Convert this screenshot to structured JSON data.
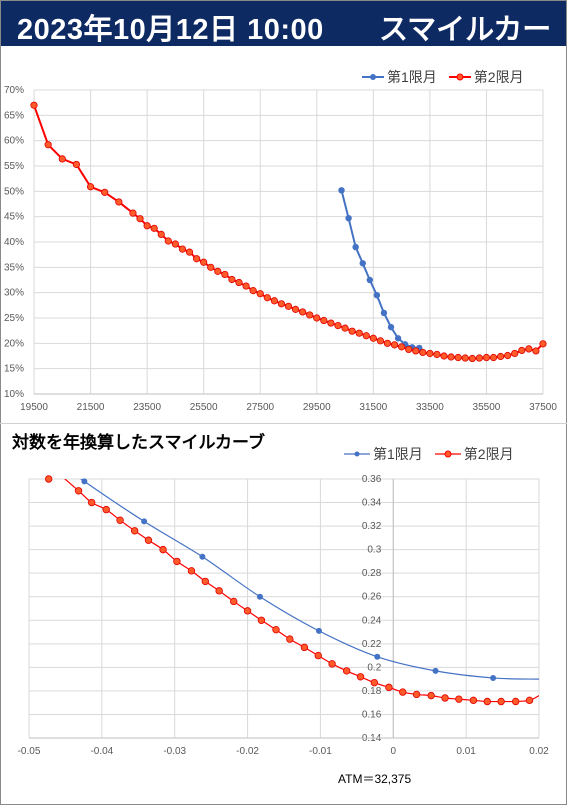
{
  "title": {
    "date": "2023年10月12日 10:00",
    "subtitle": "スマイルカーブ"
  },
  "chart_data": [
    {
      "type": "line",
      "title": "",
      "xlabel": "",
      "ylabel": "",
      "xlim": [
        19500,
        37500
      ],
      "ylim": [
        0.1,
        0.7
      ],
      "xticks": [
        19500,
        21500,
        23500,
        25500,
        27500,
        29500,
        31500,
        33500,
        35500,
        37500
      ],
      "xtick_labels": [
        "19500",
        "21500",
        "23500",
        "25500",
        "27500",
        "29500",
        "31500",
        "33500",
        "35500",
        "37500"
      ],
      "yticks": [
        0.1,
        0.15,
        0.2,
        0.25,
        0.3,
        0.35,
        0.4,
        0.45,
        0.5,
        0.55,
        0.6,
        0.65,
        0.7
      ],
      "ytick_labels": [
        "10%",
        "15%",
        "20%",
        "25%",
        "30%",
        "35%",
        "40%",
        "45%",
        "50%",
        "55%",
        "60%",
        "65%",
        "70%"
      ],
      "grid": true,
      "legend": "top-right",
      "series": [
        {
          "name": "第1限月",
          "color": "#4472c4",
          "x": [
            30375,
            30625,
            30875,
            31125,
            31375,
            31625,
            31875,
            32125,
            32375,
            32625,
            32875,
            33125
          ],
          "y": [
            0.502,
            0.447,
            0.39,
            0.358,
            0.325,
            0.295,
            0.26,
            0.232,
            0.21,
            0.198,
            0.192,
            0.191
          ]
        },
        {
          "name": "第2限月",
          "color": "#ff0000",
          "x": [
            19500,
            20000,
            20500,
            21000,
            21500,
            22000,
            22500,
            23000,
            23250,
            23500,
            23750,
            24000,
            24250,
            24500,
            24750,
            25000,
            25250,
            25500,
            25750,
            26000,
            26250,
            26500,
            26750,
            27000,
            27250,
            27500,
            27750,
            28000,
            28250,
            28500,
            28750,
            29000,
            29250,
            29500,
            29750,
            30000,
            30250,
            30500,
            30750,
            31000,
            31250,
            31500,
            31750,
            32000,
            32250,
            32500,
            32750,
            33000,
            33250,
            33500,
            33750,
            34000,
            34250,
            34500,
            34750,
            35000,
            35250,
            35500,
            35750,
            36000,
            36250,
            36500,
            36750,
            37000,
            37250,
            37500
          ],
          "y": [
            0.67,
            0.592,
            0.564,
            0.553,
            0.509,
            0.498,
            0.479,
            0.457,
            0.446,
            0.432,
            0.427,
            0.415,
            0.402,
            0.396,
            0.386,
            0.38,
            0.367,
            0.36,
            0.35,
            0.342,
            0.336,
            0.326,
            0.32,
            0.313,
            0.304,
            0.298,
            0.29,
            0.284,
            0.278,
            0.273,
            0.267,
            0.262,
            0.256,
            0.25,
            0.245,
            0.24,
            0.235,
            0.23,
            0.224,
            0.22,
            0.215,
            0.21,
            0.205,
            0.2,
            0.197,
            0.193,
            0.188,
            0.185,
            0.182,
            0.18,
            0.178,
            0.175,
            0.173,
            0.172,
            0.171,
            0.17,
            0.171,
            0.172,
            0.172,
            0.174,
            0.176,
            0.18,
            0.186,
            0.189,
            0.185,
            0.199
          ]
        }
      ]
    },
    {
      "type": "line",
      "title": "対数を年換算したスマイルカーブ",
      "xlabel": "",
      "ylabel": "",
      "xlim": [
        -0.05,
        0.02
      ],
      "ylim": [
        0.14,
        0.36
      ],
      "xticks": [
        -0.05,
        -0.04,
        -0.03,
        -0.02,
        -0.01,
        0,
        0.01,
        0.02
      ],
      "xtick_labels": [
        "-0.05",
        "-0.04",
        "-0.03",
        "-0.02",
        "-0.01",
        "0",
        "0.01",
        "0.02"
      ],
      "yticks": [
        0.14,
        0.16,
        0.18,
        0.2,
        0.22,
        0.24,
        0.26,
        0.28,
        0.3,
        0.32,
        0.34,
        0.36
      ],
      "ytick_labels": [
        "0.14",
        "0.16",
        "0.18",
        "0.2",
        "0.22",
        "0.24",
        "0.26",
        "0.28",
        "0.3",
        "0.32",
        "0.34",
        "0.36"
      ],
      "grid": true,
      "legend": "top-right",
      "annotation": "ATM＝32,375",
      "series": [
        {
          "name": "第1限月",
          "color": "#4472c4",
          "x": [
            -0.0424,
            -0.0342,
            -0.0262,
            -0.0183,
            -0.0102,
            -0.0022,
            0.0058,
            0.0137
          ],
          "y": [
            0.358,
            0.324,
            0.294,
            0.26,
            0.231,
            0.209,
            0.197,
            0.191
          ],
          "curve": {
            "x": [
              -0.05,
              -0.0424,
              -0.0342,
              -0.0262,
              -0.0183,
              -0.0102,
              -0.0022,
              0.0058,
              0.0137,
              0.02
            ],
            "y": [
              0.392,
              0.358,
              0.324,
              0.294,
              0.26,
              0.231,
              0.209,
              0.197,
              0.191,
              0.19
            ]
          }
        },
        {
          "name": "第2限月",
          "color": "#ff0000",
          "x": [
            -0.0473,
            -0.0432,
            -0.0414,
            -0.0394,
            -0.0375,
            -0.0355,
            -0.0336,
            -0.0316,
            -0.0297,
            -0.0277,
            -0.0258,
            -0.0239,
            -0.0219,
            -0.02,
            -0.0181,
            -0.0161,
            -0.0142,
            -0.0122,
            -0.0103,
            -0.0084,
            -0.0064,
            -0.0045,
            -0.0026,
            -0.0006,
            0.0013,
            0.0032,
            0.0052,
            0.0071,
            0.009,
            0.011,
            0.0129,
            0.0148,
            0.0168,
            0.0187
          ],
          "y": [
            0.36,
            0.35,
            0.34,
            0.334,
            0.325,
            0.316,
            0.308,
            0.3,
            0.29,
            0.282,
            0.273,
            0.265,
            0.256,
            0.248,
            0.24,
            0.232,
            0.224,
            0.217,
            0.21,
            0.203,
            0.197,
            0.192,
            0.187,
            0.183,
            0.179,
            0.177,
            0.176,
            0.174,
            0.173,
            0.172,
            0.171,
            0.171,
            0.171,
            0.172
          ],
          "curve": {
            "x": [
              -0.0473,
              -0.0432,
              -0.0414,
              -0.0394,
              -0.0375,
              -0.0355,
              -0.0336,
              -0.0316,
              -0.0297,
              -0.0277,
              -0.0258,
              -0.0239,
              -0.0219,
              -0.02,
              -0.0181,
              -0.0161,
              -0.0142,
              -0.0122,
              -0.0103,
              -0.0084,
              -0.0064,
              -0.0045,
              -0.0026,
              -0.0006,
              0.0013,
              0.0032,
              0.0052,
              0.0071,
              0.009,
              0.011,
              0.0129,
              0.0148,
              0.0168,
              0.0187,
              0.02
            ],
            "y": [
              0.372,
              0.35,
              0.34,
              0.334,
              0.325,
              0.316,
              0.308,
              0.3,
              0.29,
              0.282,
              0.273,
              0.265,
              0.256,
              0.248,
              0.24,
              0.232,
              0.224,
              0.217,
              0.21,
              0.203,
              0.197,
              0.192,
              0.187,
              0.183,
              0.179,
              0.177,
              0.176,
              0.174,
              0.173,
              0.172,
              0.171,
              0.171,
              0.171,
              0.172,
              0.176
            ]
          }
        }
      ]
    }
  ]
}
